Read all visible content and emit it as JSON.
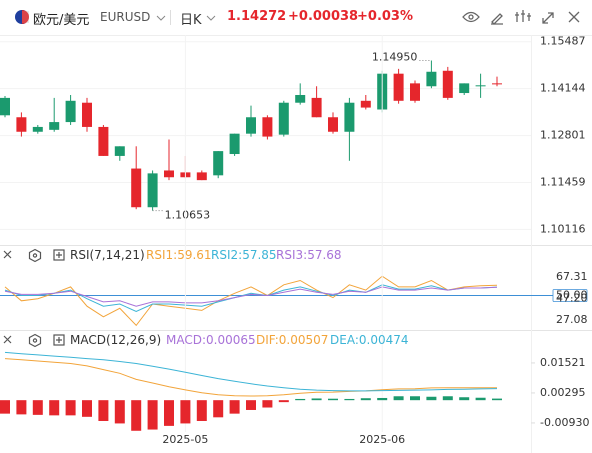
{
  "header": {
    "symbol_name": "欧元/美元",
    "symbol": "EURUSD",
    "period": "日K",
    "price": "1.14272",
    "change": "+0.00038",
    "change_pct": "+0.03%"
  },
  "chart_data": [
    {
      "type": "candlestick",
      "up_color": "#1b9a6e",
      "down_color": "#e5262c",
      "open": [
        1.13382,
        1.13326,
        1.12911,
        1.12966,
        1.13188,
        1.13742,
        1.13049,
        1.12219,
        1.11858,
        1.10751,
        1.11803,
        1.11748,
        1.11748,
        1.11664,
        1.12274,
        1.12856,
        1.13326,
        1.12828,
        1.13742,
        1.1388,
        1.13326,
        1.12911,
        1.13797,
        1.13548,
        1.14573,
        1.14296,
        1.14213,
        1.14656,
        1.14019,
        1.14213,
        1.14296
      ],
      "high": [
        1.13936,
        1.13465,
        1.13105,
        1.1388,
        1.13963,
        1.1388,
        1.13105,
        1.12495,
        1.12495,
        1.11803,
        1.1269,
        1.12219,
        1.11803,
        1.12357,
        1.12856,
        1.13659,
        1.13382,
        1.13797,
        1.14296,
        1.14213,
        1.13465,
        1.1388,
        1.13963,
        1.14656,
        1.14711,
        1.14379,
        1.1495,
        1.14767,
        1.14296,
        1.14573,
        1.1449
      ],
      "low": [
        1.13326,
        1.12773,
        1.12856,
        1.12911,
        1.13105,
        1.12911,
        1.12219,
        1.1208,
        1.10695,
        1.10653,
        1.11526,
        1.11582,
        1.11526,
        1.11582,
        1.12219,
        1.12773,
        1.1269,
        1.12773,
        1.13687,
        1.13326,
        1.12856,
        1.1208,
        1.13548,
        1.13465,
        1.13714,
        1.13742,
        1.14157,
        1.13825,
        1.13963,
        1.1388,
        1.14213
      ],
      "close": [
        1.1388,
        1.12911,
        1.13049,
        1.13188,
        1.13797,
        1.13049,
        1.12219,
        1.12495,
        1.10751,
        1.1172,
        1.11609,
        1.11609,
        1.11526,
        1.12357,
        1.12856,
        1.13326,
        1.12773,
        1.13742,
        1.13963,
        1.13326,
        1.12911,
        1.13742,
        1.13603,
        1.14573,
        1.13797,
        1.13797,
        1.14628,
        1.1388,
        1.14296,
        1.1424,
        1.14272
      ],
      "ylim": [
        1.0967,
        1.1568
      ],
      "yticks": [
        1.15487,
        1.14144,
        1.12801,
        1.11459,
        1.10116
      ],
      "grid": true,
      "annotations": [
        {
          "value": 1.1495,
          "label": "1.14950"
        },
        {
          "value": 1.10653,
          "label": "1.10653"
        }
      ]
    },
    {
      "type": "line",
      "title": "RSI(7,14,21)",
      "ylim": [
        20.5,
        78.5
      ],
      "yticks": [
        67.31,
        {
          "value": 50,
          "label": "50.00"
        },
        {
          "value": 47.2,
          "label": "47.20"
        },
        27.08
      ],
      "reference_line": 50,
      "reference_color": "#3d8fd6",
      "series": [
        {
          "name": "RSI1",
          "color": "#f2a43a",
          "values": [
            58,
            45,
            47,
            52,
            58,
            40,
            30,
            38,
            22,
            42,
            40,
            38,
            36,
            45,
            52,
            58,
            50,
            60,
            64,
            55,
            48,
            60,
            55,
            68,
            58,
            58,
            64,
            55,
            58,
            59,
            59.61
          ]
        },
        {
          "name": "RSI2",
          "color": "#3cb4d6",
          "values": [
            55,
            50,
            50,
            52,
            55,
            47,
            40,
            42,
            35,
            42,
            42,
            41,
            40,
            44,
            48,
            52,
            50,
            55,
            58,
            54,
            50,
            55,
            53,
            60,
            56,
            56,
            59,
            55,
            57,
            57,
            57.85
          ]
        },
        {
          "name": "RSI3",
          "color": "#a872d8",
          "values": [
            54,
            51,
            51,
            52,
            54,
            49,
            44,
            45,
            40,
            44,
            44,
            43,
            43,
            45,
            48,
            51,
            50,
            53,
            56,
            53,
            51,
            54,
            53,
            58,
            55,
            55,
            57,
            55,
            57,
            57,
            57.68
          ]
        }
      ]
    },
    {
      "type": "macd",
      "title": "MACD(12,26,9)",
      "ylim": [
        -0.013,
        0.0205
      ],
      "yticks": [
        0.01521,
        0.00295,
        -0.0093
      ],
      "ytick_labels": [
        "0.01521",
        "0.00295",
        "-0.00930"
      ],
      "categories": [
        null,
        null,
        null,
        null,
        null,
        null,
        null,
        null,
        null,
        null,
        null,
        "2025-05",
        null,
        null,
        null,
        null,
        null,
        null,
        null,
        null,
        null,
        null,
        null,
        "2025-06",
        null,
        null,
        null,
        null,
        null,
        null,
        null
      ],
      "positive_color": "#1b9a6e",
      "negative_color": "#e5262c",
      "series": [
        {
          "name": "MACD",
          "color": "#a872d8",
          "kind": "bar",
          "value_label": "0.00065",
          "values": [
            -0.0055,
            -0.0058,
            -0.006,
            -0.0062,
            -0.0062,
            -0.0068,
            -0.0085,
            -0.0095,
            -0.0125,
            -0.012,
            -0.0105,
            -0.0095,
            -0.0085,
            -0.007,
            -0.0055,
            -0.004,
            -0.003,
            -0.0008,
            0.0005,
            0.0007,
            0.0006,
            0.0005,
            0.0008,
            0.0009,
            0.0016,
            0.0016,
            0.0014,
            0.0016,
            0.0012,
            0.001,
            0.00065
          ]
        },
        {
          "name": "DIF",
          "color": "#f2a43a",
          "kind": "line",
          "value_label": "0.00507",
          "values": [
            0.017,
            0.0165,
            0.016,
            0.0155,
            0.015,
            0.014,
            0.0125,
            0.011,
            0.0085,
            0.007,
            0.0055,
            0.0042,
            0.003,
            0.0022,
            0.0018,
            0.0017,
            0.0018,
            0.0022,
            0.0028,
            0.0032,
            0.0033,
            0.0036,
            0.0038,
            0.0043,
            0.0046,
            0.0047,
            0.005,
            0.0051,
            0.0051,
            0.0051,
            0.00507
          ]
        },
        {
          "name": "DEA",
          "color": "#3cb4d6",
          "kind": "line",
          "value_label": "0.00474",
          "values": [
            0.0195,
            0.019,
            0.0185,
            0.018,
            0.0175,
            0.017,
            0.0165,
            0.0158,
            0.015,
            0.0139,
            0.0127,
            0.0114,
            0.0101,
            0.0088,
            0.0077,
            0.0067,
            0.0058,
            0.0051,
            0.0045,
            0.0041,
            0.0039,
            0.0038,
            0.0038,
            0.0039,
            0.004,
            0.0041,
            0.0042,
            0.0044,
            0.0045,
            0.0046,
            0.00474
          ]
        }
      ]
    }
  ]
}
